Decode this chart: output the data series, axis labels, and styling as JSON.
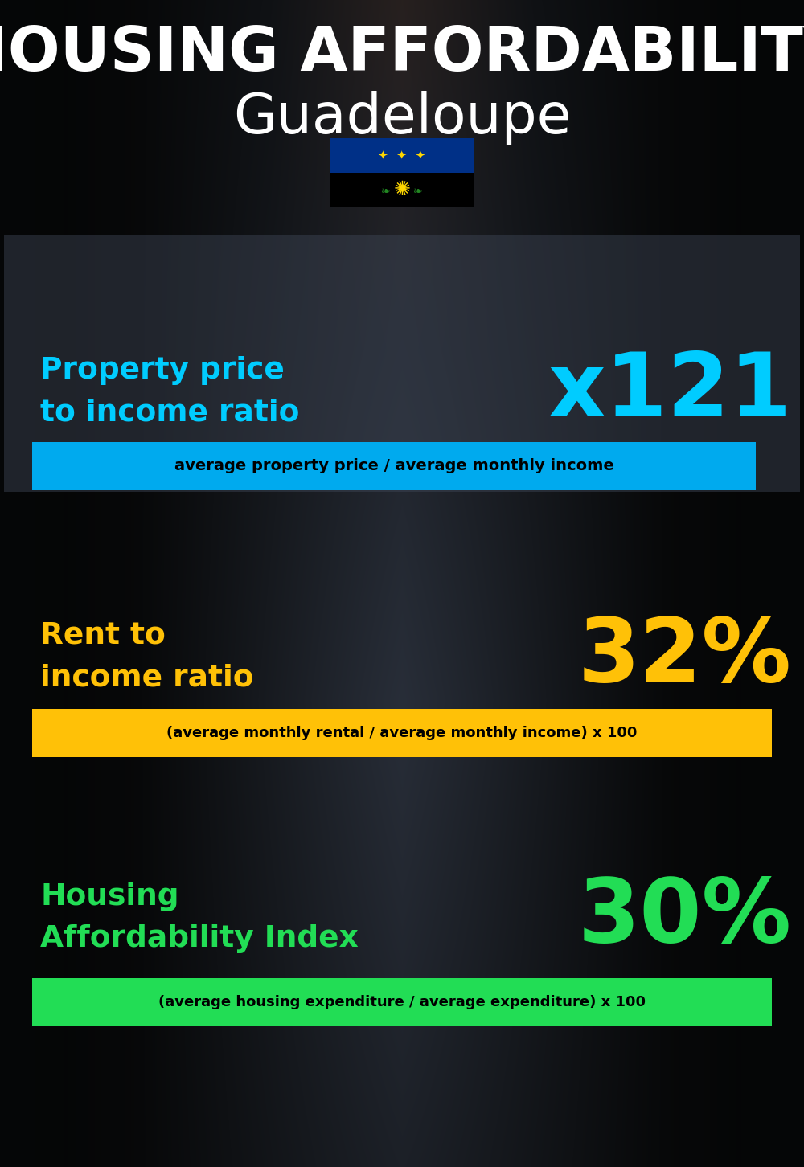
{
  "title_line1": "HOUSING AFFORDABILITY",
  "title_line2": "Guadeloupe",
  "bg_color": "#0a0f1a",
  "section1_label": "Property price\nto income ratio",
  "section1_value": "x121",
  "section1_label_color": "#00ccff",
  "section1_value_color": "#00ccff",
  "section1_formula": "average property price / average monthly income",
  "section1_formula_bg": "#00aaee",
  "section2_label": "Rent to\nincome ratio",
  "section2_value": "32%",
  "section2_label_color": "#ffc107",
  "section2_value_color": "#ffc107",
  "section2_formula": "(average monthly rental / average monthly income) x 100",
  "section2_formula_bg": "#ffc107",
  "section3_label": "Housing\nAffordability Index",
  "section3_value": "30%",
  "section3_label_color": "#22dd55",
  "section3_value_color": "#22dd55",
  "section3_formula": "(average housing expenditure / average expenditure) x 100",
  "section3_formula_bg": "#22dd55",
  "title_color": "#ffffff",
  "subtitle_color": "#ffffff"
}
